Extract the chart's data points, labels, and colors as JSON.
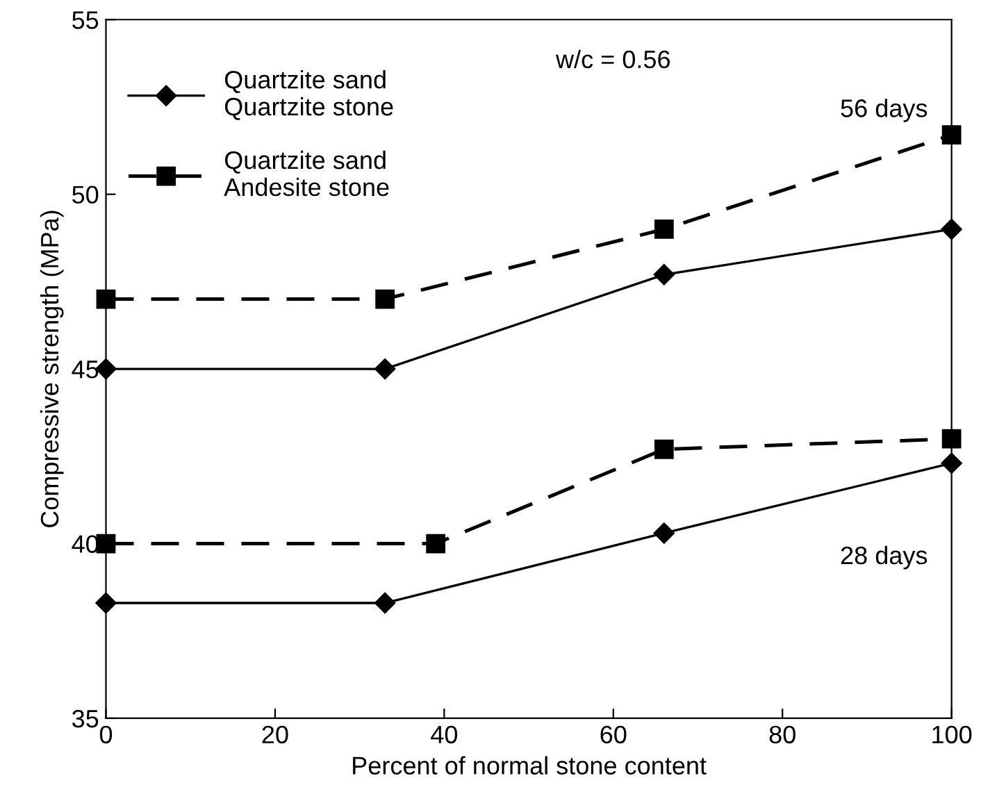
{
  "chart_data": {
    "type": "line",
    "xlabel": "Percent of normal stone content",
    "ylabel": "Compressive strength (MPa)",
    "xlim": [
      0,
      100
    ],
    "xticks": [
      0,
      20,
      40,
      60,
      80,
      100
    ],
    "ylim": [
      35,
      55
    ],
    "yticks": [
      35,
      40,
      45,
      50,
      55
    ],
    "grid": false,
    "legend": "top left",
    "series": [
      {
        "name": "Quartzite sand\nQuartzite stone",
        "color": "#000000",
        "marker": "diamond",
        "line_style": "solid",
        "x": [
          0,
          33,
          66,
          100
        ],
        "values": [
          45.0,
          45.0,
          47.7,
          49.0
        ]
      },
      {
        "name": "Quartzite sand\nAndesite stone",
        "color": "#000000",
        "marker": "square",
        "line_style": "dashed",
        "x": [
          0,
          33,
          66,
          100
        ],
        "values": [
          47.0,
          47.0,
          49.0,
          51.7
        ]
      },
      {
        "color": "#000000",
        "marker": "diamond",
        "line_style": "solid",
        "x": [
          0,
          33,
          66,
          100
        ],
        "values": [
          38.3,
          38.3,
          40.3,
          42.3
        ]
      },
      {
        "color": "#000000",
        "marker": "square",
        "line_style": "dashed",
        "x": [
          0,
          39,
          66,
          100
        ],
        "values": [
          40.0,
          40.0,
          42.7,
          43.0
        ]
      }
    ],
    "annotations": [
      "w/c = 0.56",
      "56 days",
      "28 days"
    ]
  }
}
